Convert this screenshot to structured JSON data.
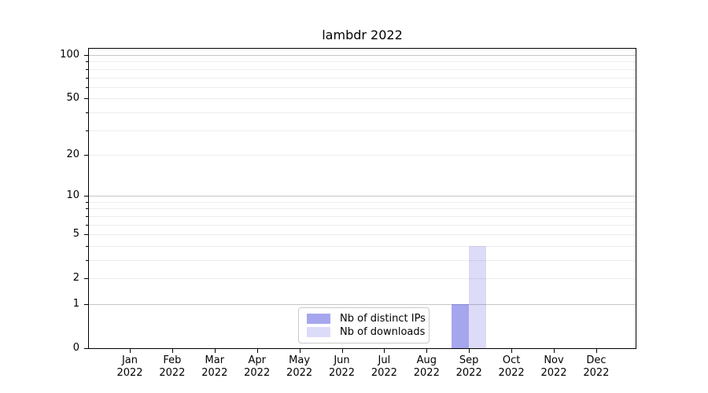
{
  "title": "lambdr 2022",
  "legend": {
    "items": [
      {
        "label": "Nb of distinct IPs",
        "color_hex": "#a6a6f1",
        "color_rgba": "rgba(57,57,218,0.45)"
      },
      {
        "label": "Nb of downloads",
        "color_hex": "#dcdcf8",
        "color_rgba": "rgba(80,80,220,0.2)"
      }
    ]
  },
  "chart_data": {
    "type": "bar",
    "title": "lambdr 2022",
    "months": [
      "Jan",
      "Feb",
      "Mar",
      "Apr",
      "May",
      "Jun",
      "Jul",
      "Aug",
      "Sep",
      "Oct",
      "Nov",
      "Dec"
    ],
    "year": "2022",
    "categories": [
      "Jan 2022",
      "Feb 2022",
      "Mar 2022",
      "Apr 2022",
      "May 2022",
      "Jun 2022",
      "Jul 2022",
      "Aug 2022",
      "Sep 2022",
      "Oct 2022",
      "Nov 2022",
      "Dec 2022"
    ],
    "series": [
      {
        "name": "Nb of distinct IPs",
        "values": [
          0,
          0,
          0,
          0,
          0,
          0,
          0,
          0,
          1,
          0,
          0,
          0
        ],
        "color_hex": "#a6a6f1",
        "color_rgba": "rgba(57,57,218,0.45)"
      },
      {
        "name": "Nb of downloads",
        "values": [
          0,
          0,
          0,
          0,
          0,
          0,
          0,
          0,
          4,
          0,
          0,
          0
        ],
        "color_hex": "#dcdcf8",
        "color_rgba": "rgba(80,80,220,0.2)"
      }
    ],
    "yscale": "log1p",
    "ylim": [
      0,
      110
    ],
    "y_ticks": [
      0,
      1,
      2,
      5,
      10,
      20,
      50,
      100
    ],
    "y_major_gridlines": [
      1,
      10,
      100
    ],
    "y_minor_gridlines": [
      2,
      3,
      4,
      5,
      6,
      7,
      8,
      9,
      20,
      30,
      40,
      50,
      60,
      70,
      80,
      90
    ],
    "y_minor_ticks": [
      3,
      4,
      6,
      7,
      8,
      9,
      30,
      40,
      60,
      70,
      80,
      90
    ],
    "grid": "horizontal",
    "legend_position": "lower center",
    "xlabel": "",
    "ylabel": ""
  },
  "colors": {
    "background": "#ffffff",
    "axis": "#000000",
    "text": "#000000",
    "major_grid": "#c6c6c6",
    "minor_grid": "#ededed",
    "legend_border": "#c9c9c9"
  }
}
